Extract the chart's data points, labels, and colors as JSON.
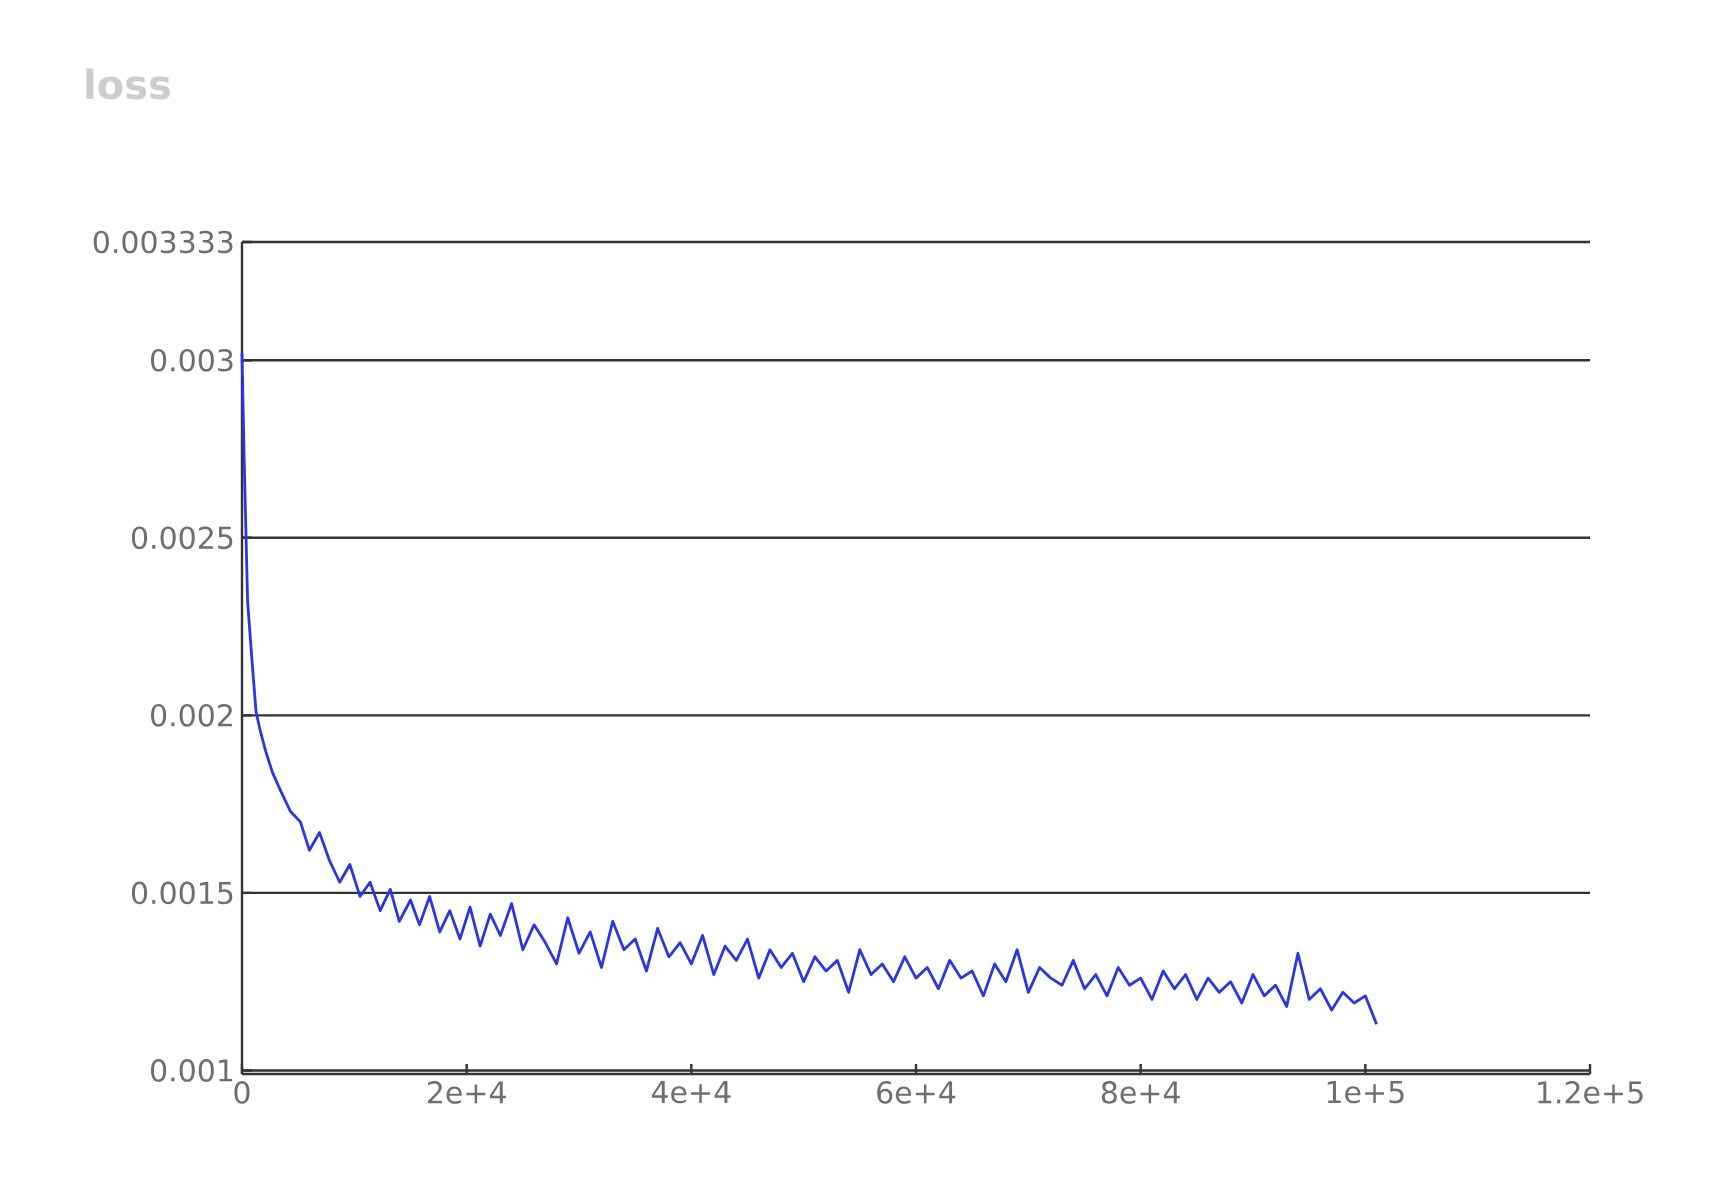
{
  "chart_data": {
    "type": "line",
    "title": "loss",
    "xlim": [
      0,
      120000
    ],
    "ylim": [
      0.00099,
      0.003333
    ],
    "xticks": [
      {
        "value": 0,
        "label": "0"
      },
      {
        "value": 20000,
        "label": "2e+4"
      },
      {
        "value": 40000,
        "label": "4e+4"
      },
      {
        "value": 60000,
        "label": "6e+4"
      },
      {
        "value": 80000,
        "label": "8e+4"
      },
      {
        "value": 100000,
        "label": "1e+5"
      },
      {
        "value": 120000,
        "label": "1.2e+5"
      }
    ],
    "yticks": [
      0.001,
      0.0015,
      0.002,
      0.0025,
      0.003,
      0.003333
    ],
    "grid": "y",
    "marker": "none",
    "line_style": "solid",
    "series": [
      {
        "color": "#2b35e0",
        "x": [
          0,
          200,
          500,
          900,
          1250,
          1600,
          2100,
          2700,
          3400,
          4300,
          5200,
          6000,
          6900,
          7800,
          8700,
          9600,
          10500,
          11400,
          12300,
          13200,
          14000,
          15000,
          15800,
          16700,
          17600,
          18500,
          19400,
          20300,
          21200,
          22100,
          23000,
          24000,
          25000,
          26000,
          27000,
          28000,
          29000,
          30000,
          31000,
          32000,
          33000,
          34000,
          35000,
          36000,
          37000,
          38000,
          39000,
          40000,
          41000,
          42000,
          43000,
          44000,
          45000,
          46000,
          47000,
          48000,
          49000,
          50000,
          51000,
          52000,
          53000,
          54000,
          55000,
          56000,
          57000,
          58000,
          59000,
          60000,
          61000,
          62000,
          63000,
          64000,
          65000,
          66000,
          67000,
          68000,
          69000,
          70000,
          71000,
          72000,
          73000,
          74000,
          75000,
          76000,
          77000,
          78000,
          79000,
          80000,
          81000,
          82000,
          83000,
          84000,
          85000,
          86000,
          87000,
          88000,
          89000,
          90000,
          91000,
          92000,
          93000,
          94000,
          95000,
          96000,
          97000,
          98000,
          99000,
          100000,
          101000
        ],
        "values": [
          0.00302,
          0.00271,
          0.00232,
          0.00215,
          0.00201,
          0.00196,
          0.0019,
          0.00184,
          0.00179,
          0.00173,
          0.0017,
          0.00162,
          0.00167,
          0.00159,
          0.00153,
          0.00158,
          0.00149,
          0.00153,
          0.00145,
          0.00151,
          0.00142,
          0.00148,
          0.00141,
          0.00149,
          0.00139,
          0.00145,
          0.00137,
          0.00146,
          0.00135,
          0.00144,
          0.00138,
          0.00147,
          0.00134,
          0.00141,
          0.00136,
          0.0013,
          0.00143,
          0.00133,
          0.00139,
          0.00129,
          0.00142,
          0.00134,
          0.00137,
          0.00128,
          0.0014,
          0.00132,
          0.00136,
          0.0013,
          0.00138,
          0.00127,
          0.00135,
          0.00131,
          0.00137,
          0.00126,
          0.00134,
          0.00129,
          0.00133,
          0.00125,
          0.00132,
          0.00128,
          0.00131,
          0.00122,
          0.00134,
          0.00127,
          0.0013,
          0.00125,
          0.00132,
          0.00126,
          0.00129,
          0.00123,
          0.00131,
          0.00126,
          0.00128,
          0.00121,
          0.0013,
          0.00125,
          0.00134,
          0.00122,
          0.00129,
          0.00126,
          0.00124,
          0.00131,
          0.00123,
          0.00127,
          0.00121,
          0.00129,
          0.00124,
          0.00126,
          0.0012,
          0.00128,
          0.00123,
          0.00127,
          0.0012,
          0.00126,
          0.00122,
          0.00125,
          0.00119,
          0.00127,
          0.00121,
          0.00124,
          0.00118,
          0.00133,
          0.0012,
          0.00123,
          0.00117,
          0.00122,
          0.00119,
          0.00121,
          0.00113
        ]
      }
    ]
  }
}
